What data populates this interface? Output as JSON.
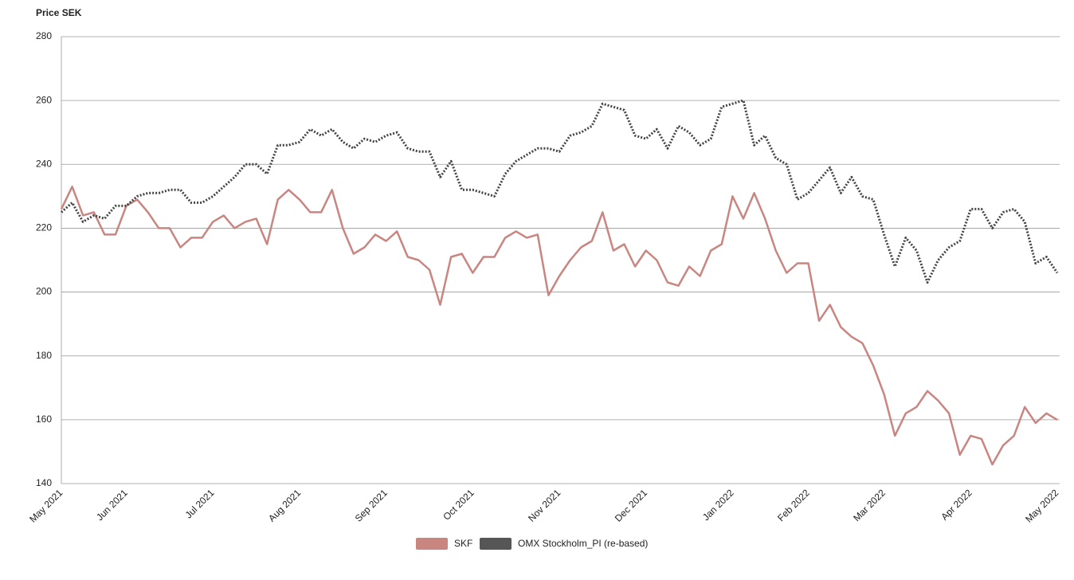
{
  "chart_data": {
    "type": "line",
    "y_label": "Price SEK",
    "categories": [
      "May 2021",
      null,
      null,
      null,
      null,
      null,
      "Jun 2021",
      null,
      null,
      null,
      null,
      null,
      null,
      null,
      "Jul 2021",
      null,
      null,
      null,
      null,
      null,
      null,
      null,
      "Aug 2021",
      null,
      null,
      null,
      null,
      null,
      null,
      null,
      "Sep 2021",
      null,
      null,
      null,
      null,
      null,
      null,
      null,
      "Oct 2021",
      null,
      null,
      null,
      null,
      null,
      null,
      null,
      "Nov 2021",
      null,
      null,
      null,
      null,
      null,
      null,
      null,
      "Dec 2021",
      null,
      null,
      null,
      null,
      null,
      null,
      null,
      "Jan 2022",
      null,
      null,
      null,
      null,
      null,
      null,
      "Feb 2022",
      null,
      null,
      null,
      null,
      null,
      null,
      "Mar 2022",
      null,
      null,
      null,
      null,
      null,
      null,
      null,
      "Apr 2022",
      null,
      null,
      null,
      null,
      null,
      null,
      null,
      "May 2022"
    ],
    "series": [
      {
        "name": "SKF",
        "color": "#c98580",
        "style": "solid",
        "values": [
          226,
          233,
          224,
          225,
          218,
          218,
          227,
          229,
          225,
          220,
          220,
          214,
          217,
          217,
          222,
          224,
          220,
          222,
          223,
          215,
          229,
          232,
          229,
          225,
          225,
          232,
          220,
          212,
          214,
          218,
          216,
          219,
          211,
          210,
          207,
          196,
          211,
          212,
          206,
          211,
          211,
          217,
          219,
          217,
          218,
          199,
          205,
          210,
          214,
          216,
          225,
          213,
          215,
          208,
          213,
          210,
          203,
          202,
          208,
          205,
          213,
          215,
          230,
          223,
          231,
          223,
          213,
          206,
          209,
          209,
          191,
          196,
          189,
          186,
          184,
          177,
          168,
          155,
          162,
          164,
          169,
          166,
          162,
          149,
          155,
          154,
          146,
          152,
          155,
          164,
          159,
          162,
          160
        ]
      },
      {
        "name": "OMX Stockholm_PI (re-based)",
        "color": "#444444",
        "style": "dotted",
        "values": [
          225,
          228,
          222,
          224,
          223,
          227,
          227,
          230,
          231,
          231,
          232,
          232,
          228,
          228,
          230,
          233,
          236,
          240,
          240,
          237,
          246,
          246,
          247,
          251,
          249,
          251,
          247,
          245,
          248,
          247,
          249,
          250,
          245,
          244,
          244,
          236,
          241,
          232,
          232,
          231,
          230,
          237,
          241,
          243,
          245,
          245,
          244,
          249,
          250,
          252,
          259,
          258,
          257,
          249,
          248,
          251,
          245,
          252,
          250,
          246,
          248,
          258,
          259,
          260,
          246,
          249,
          242,
          240,
          229,
          231,
          235,
          239,
          231,
          236,
          230,
          229,
          218,
          208,
          217,
          213,
          203,
          210,
          214,
          216,
          226,
          226,
          220,
          225,
          226,
          222,
          209,
          211,
          206
        ]
      }
    ],
    "ylim": [
      140,
      280
    ],
    "yticks": [
      140,
      160,
      180,
      200,
      220,
      240,
      260,
      280
    ],
    "grid": true,
    "legend": "bottom"
  }
}
